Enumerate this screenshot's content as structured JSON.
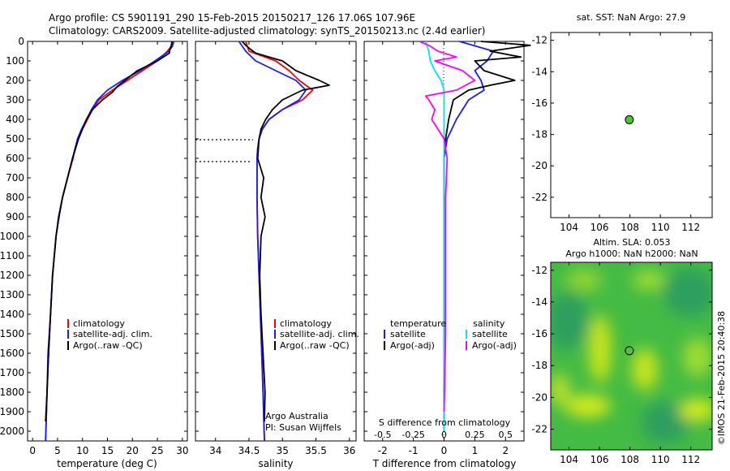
{
  "header": {
    "line1": "Argo profile: CS 5901191_290 15-Feb-2015 20150217_126 17.06S 107.96E",
    "line2": "Climatology: CARS2009. Satellite-adjusted climatology: synTS_20150213.nc (2.4d earlier)"
  },
  "colors": {
    "climatology": "#ff0000",
    "satellite": "#1a1aff",
    "argo": "#000000",
    "salinity_satellite": "#00e5ee",
    "salinity_argo": "#ff00ff",
    "sst_marker": "#44cc22"
  },
  "chart_data": [
    {
      "id": "temperature",
      "type": "line",
      "xlabel": "temperature (deg C)",
      "ylabel": "",
      "xlim": [
        -1,
        31
      ],
      "ylim": [
        2050,
        0
      ],
      "xticks": [
        0,
        5,
        10,
        15,
        20,
        25,
        30
      ],
      "yticks": [
        0,
        100,
        200,
        300,
        400,
        500,
        600,
        700,
        800,
        900,
        1000,
        1100,
        1200,
        1300,
        1400,
        1500,
        1600,
        1700,
        1800,
        1900,
        2000
      ],
      "legend": {
        "position": "lower-center",
        "entries": [
          "climatology",
          "satellite-adj. clim.",
          "Argo(..raw -QC)"
        ]
      },
      "series": [
        {
          "name": "climatology",
          "color": "#ff0000",
          "depth": [
            0,
            25,
            50,
            100,
            150,
            200,
            250,
            300,
            350,
            400,
            450,
            500,
            600,
            700,
            800,
            900,
            1000,
            1200,
            1400,
            1600,
            1800,
            2050
          ],
          "values": [
            28,
            27.8,
            27,
            25,
            22,
            19,
            16,
            13.3,
            12,
            11,
            10,
            9,
            8.1,
            7,
            6,
            5.2,
            4.7,
            4,
            3.6,
            3.2,
            2.9,
            2.6
          ]
        },
        {
          "name": "satellite-adj. clim.",
          "color": "#1a1aff",
          "depth": [
            0,
            25,
            50,
            100,
            150,
            200,
            250,
            300,
            350,
            400,
            450,
            500,
            600,
            700,
            800,
            900,
            1000,
            1200,
            1400,
            1600,
            1800,
            2050
          ],
          "values": [
            28.3,
            28,
            27.3,
            24.5,
            21.5,
            18,
            15,
            13,
            11.8,
            10.8,
            9.8,
            9,
            8,
            7,
            6,
            5.2,
            4.7,
            4,
            3.6,
            3.1,
            2.9,
            2.6
          ]
        },
        {
          "name": "Argo(..raw -QC)",
          "color": "#000000",
          "depth": [
            0,
            20,
            40,
            60,
            100,
            150,
            200,
            230,
            260,
            300,
            350,
            400,
            450,
            500,
            600,
            700,
            800,
            900,
            1000,
            1200,
            1400,
            1600,
            1800,
            1950
          ],
          "values": [
            27.9,
            27.8,
            27.5,
            27.4,
            25,
            21,
            18.5,
            17,
            16,
            14,
            12,
            10.8,
            10,
            9.2,
            8,
            7,
            6,
            5.3,
            4.7,
            4,
            3.6,
            3.2,
            2.9,
            2.6
          ]
        }
      ]
    },
    {
      "id": "salinity",
      "type": "line",
      "xlabel": "salinity",
      "ylabel": "",
      "xlim": [
        33.7,
        36.1
      ],
      "ylim": [
        2050,
        0
      ],
      "xticks": [
        34,
        34.5,
        35,
        35.5,
        36
      ],
      "legend": {
        "position": "lower-center",
        "entries": [
          "climatology",
          "satellite-adj. clim.",
          "Argo(..raw -QC)"
        ]
      },
      "annotations": [
        "Argo Australia",
        "PI: Susan Wijffels"
      ],
      "series": [
        {
          "name": "climatology",
          "color": "#ff0000",
          "depth": [
            0,
            50,
            100,
            150,
            200,
            250,
            300,
            350,
            400,
            450,
            500,
            550,
            600,
            800,
            1000,
            1200,
            1400,
            1600,
            1800,
            2050
          ],
          "values": [
            34.45,
            34.5,
            34.9,
            35.1,
            35.25,
            35.45,
            35.3,
            35.0,
            34.8,
            34.7,
            34.65,
            34.63,
            34.62,
            34.62,
            34.63,
            34.65,
            34.67,
            34.69,
            34.71,
            34.73
          ]
        },
        {
          "name": "satellite-adj. clim.",
          "color": "#1a1aff",
          "depth": [
            0,
            50,
            100,
            150,
            200,
            250,
            300,
            350,
            400,
            450,
            500,
            550,
            600,
            800,
            1000,
            1200,
            1400,
            1600,
            1800,
            2050
          ],
          "values": [
            34.35,
            34.45,
            34.6,
            34.9,
            35.2,
            35.35,
            35.25,
            35.0,
            34.8,
            34.7,
            34.65,
            34.63,
            34.62,
            34.62,
            34.63,
            34.65,
            34.67,
            34.69,
            34.71,
            34.73
          ]
        },
        {
          "name": "Argo(..raw -QC)",
          "color": "#000000",
          "depth": [
            0,
            20,
            40,
            60,
            80,
            100,
            150,
            200,
            225,
            250,
            300,
            350,
            400,
            450,
            500,
            600,
            700,
            800,
            900,
            1000,
            1200,
            1400,
            1600,
            1800,
            1950
          ],
          "values": [
            34.4,
            34.45,
            34.52,
            34.6,
            34.8,
            35.0,
            35.2,
            35.55,
            35.7,
            35.3,
            35.0,
            34.85,
            34.75,
            34.68,
            34.65,
            34.63,
            34.72,
            34.68,
            34.74,
            34.68,
            34.66,
            34.68,
            34.71,
            34.74,
            34.73
          ]
        }
      ]
    },
    {
      "id": "differences",
      "type": "line",
      "xlabel": "T difference from climatology",
      "xlabel_top": "S difference from climatology",
      "xlim": [
        -2.6,
        2.6
      ],
      "ylim": [
        2050,
        0
      ],
      "xticks": [
        -2,
        -1,
        0,
        1,
        2
      ],
      "xticks_s": [
        -0.5,
        -0.25,
        0,
        0.25,
        0.5
      ],
      "xtick_labels_s": [
        "-0.5",
        "-0.25",
        "0",
        "0.25",
        "0.5"
      ],
      "legend": {
        "position": "lower-center",
        "groups": [
          "temperature",
          "salinity"
        ],
        "entries": [
          "satellite",
          "Argo(-adj)",
          "satellite",
          "Argo(-adj)"
        ]
      },
      "series": [
        {
          "name": "temperature satellite",
          "color": "#1a1aff",
          "depth": [
            0,
            50,
            100,
            150,
            200,
            250,
            300,
            400,
            500,
            600,
            800,
            1000,
            1500,
            2000
          ],
          "values": [
            0.5,
            1.6,
            1.4,
            1.0,
            1.2,
            1.3,
            0.8,
            0.4,
            0.1,
            0,
            0,
            0,
            0,
            0
          ]
        },
        {
          "name": "temperature Argo(-adj)",
          "color": "#000000",
          "depth": [
            0,
            20,
            50,
            80,
            100,
            150,
            200,
            225,
            250,
            300,
            400,
            500,
            600,
            800,
            1000,
            1500,
            1950
          ],
          "values": [
            1.2,
            2.8,
            1.5,
            2.5,
            1.0,
            1.3,
            2.3,
            1.5,
            0.8,
            0.3,
            0.15,
            0.05,
            0,
            0,
            0,
            0,
            0
          ]
        },
        {
          "name": "salinity satellite",
          "color": "#00e5ee",
          "depth": [
            0,
            50,
            100,
            150,
            200,
            250,
            300,
            400,
            500,
            600,
            800,
            1000,
            1500,
            2000
          ],
          "values": [
            -0.6,
            -0.5,
            -0.45,
            -0.3,
            -0.1,
            0,
            0,
            0,
            0,
            0,
            0,
            0,
            0,
            0
          ]
        },
        {
          "name": "salinity Argo(-adj)",
          "color": "#ff00ff",
          "depth": [
            0,
            20,
            50,
            80,
            100,
            150,
            200,
            250,
            280,
            300,
            350,
            400,
            450,
            500,
            600,
            800,
            1000,
            1500,
            1900
          ],
          "values": [
            -0.8,
            -0.5,
            -0.2,
            0.4,
            -0.3,
            0.6,
            1.0,
            0.4,
            -0.6,
            -0.5,
            -0.3,
            -0.4,
            -0.2,
            0,
            0.1,
            0.05,
            0.05,
            0.05,
            0
          ]
        }
      ]
    },
    {
      "id": "sst_map",
      "type": "scatter",
      "title": "sat. SST: NaN Argo: 27.9",
      "xlim": [
        102.8,
        113.4
      ],
      "ylim": [
        -23.3,
        -11.5
      ],
      "xticks": [
        104,
        106,
        108,
        110,
        112
      ],
      "yticks": [
        -12,
        -14,
        -16,
        -18,
        -20,
        -22
      ],
      "points": [
        {
          "x": 107.96,
          "y": -17.06,
          "color": "#44cc22"
        }
      ]
    },
    {
      "id": "sla_map",
      "type": "heatmap",
      "title_line1": "Altim. SLA: 0.053",
      "title_line2": "Argo h1000: NaN h2000: NaN",
      "xlim": [
        102.8,
        113.4
      ],
      "ylim": [
        -23.3,
        -11.5
      ],
      "xticks": [
        104,
        106,
        108,
        110,
        112
      ],
      "yticks": [
        -12,
        -14,
        -16,
        -18,
        -20,
        -22
      ],
      "points": [
        {
          "x": 107.96,
          "y": -17.06
        }
      ]
    }
  ],
  "credit": "©IMOS 21-Feb-2015 20:40:38"
}
